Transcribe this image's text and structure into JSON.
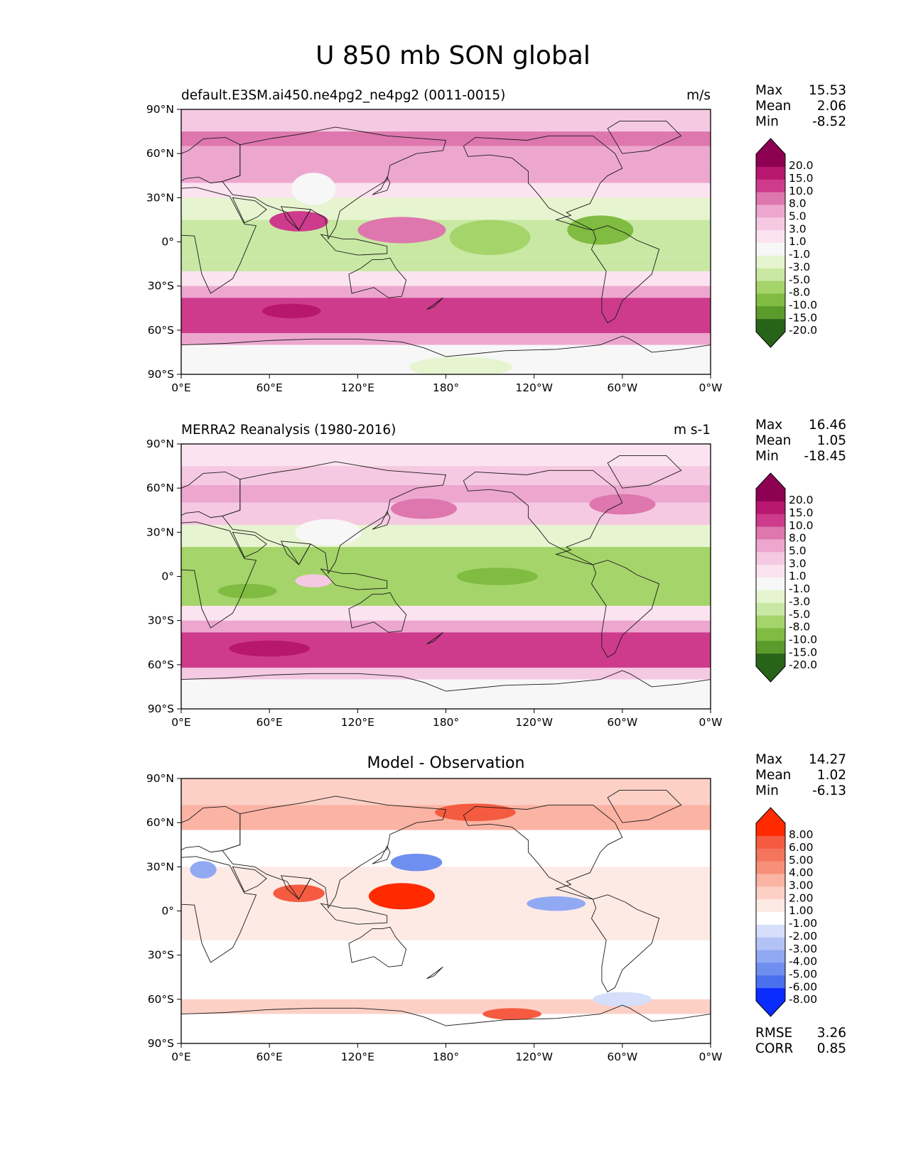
{
  "figure": {
    "title": "U 850 mb SON global"
  },
  "colors": {
    "div_colormap": [
      "#276419",
      "#4d9221",
      "#7fbc41",
      "#b8e186",
      "#e6f5d0",
      "#f7f7f7",
      "#fde0ef",
      "#f1b6da",
      "#de77ae",
      "#c51b7d",
      "#8e0152"
    ],
    "diff_colormap": [
      "#0b2cff",
      "#3c62f5",
      "#6f8ff0",
      "#a6b9f4",
      "#d5defa",
      "#ffffff",
      "#fddcd5",
      "#fbb3a4",
      "#f8846c",
      "#f4553a",
      "#ff2a00"
    ],
    "coastline": "#1a1a1a"
  },
  "chart_data": [
    {
      "type": "contourf_map",
      "name": "model",
      "left_title": "default.E3SM.ai450.ne4pg2_ne4pg2 (0011-0015)",
      "units": "m/s",
      "stats": [
        [
          "Max",
          "15.53"
        ],
        [
          "Mean",
          "2.06"
        ],
        [
          "Min",
          "-8.52"
        ]
      ],
      "colorbar_levels": [
        "20.0",
        "15.0",
        "10.0",
        "8.0",
        "5.0",
        "3.0",
        "1.0",
        "-1.0",
        "-3.0",
        "-5.0",
        "-8.0",
        "-10.0",
        "-15.0",
        "-20.0"
      ],
      "colorbar_colors": [
        "#8e0152",
        "#b7176f",
        "#ce3b8c",
        "#de77ae",
        "#eda7cf",
        "#f5c9e2",
        "#fbe3f0",
        "#f7f7f7",
        "#e6f5d0",
        "#c9e8a4",
        "#a5d46a",
        "#7fbc41",
        "#5a9b2c",
        "#276419"
      ],
      "xticks": [
        "0°E",
        "60°E",
        "120°E",
        "180°",
        "120°W",
        "60°W",
        "0°W"
      ],
      "yticks": [
        "90°N",
        "60°N",
        "30°N",
        "0°",
        "30°S",
        "60°S",
        "90°S"
      ],
      "zonal_bands": [
        {
          "lat": [
            90,
            75
          ],
          "value": 4
        },
        {
          "lat": [
            75,
            65
          ],
          "value": 8
        },
        {
          "lat": [
            65,
            55
          ],
          "value": 6
        },
        {
          "lat": [
            55,
            40
          ],
          "value": 7
        },
        {
          "lat": [
            40,
            30
          ],
          "value": 2
        },
        {
          "lat": [
            30,
            15
          ],
          "value": -3
        },
        {
          "lat": [
            15,
            -10
          ],
          "value": -5
        },
        {
          "lat": [
            -10,
            -20
          ],
          "value": -4
        },
        {
          "lat": [
            -20,
            -30
          ],
          "value": 1
        },
        {
          "lat": [
            -30,
            -38
          ],
          "value": 6
        },
        {
          "lat": [
            -38,
            -62
          ],
          "value": 12
        },
        {
          "lat": [
            -62,
            -70
          ],
          "value": 5
        },
        {
          "lat": [
            -70,
            -90
          ],
          "value": 0
        }
      ],
      "features": [
        {
          "lon": 150,
          "lat": 8,
          "w": 60,
          "h": 14,
          "value": 9
        },
        {
          "lon": 80,
          "lat": 14,
          "w": 40,
          "h": 10,
          "value": 10
        },
        {
          "lon": 210,
          "lat": 3,
          "w": 55,
          "h": 20,
          "value": -8
        },
        {
          "lon": 285,
          "lat": 8,
          "w": 45,
          "h": 16,
          "value": -9
        },
        {
          "lon": 90,
          "lat": 36,
          "w": 30,
          "h": 18,
          "value": 0
        },
        {
          "lon": 75,
          "lat": -47,
          "w": 40,
          "h": 6,
          "value": 15
        },
        {
          "lon": 190,
          "lat": -85,
          "w": 70,
          "h": 10,
          "value": -3
        }
      ]
    },
    {
      "type": "contourf_map",
      "name": "observation",
      "left_title": "MERRA2 Reanalysis (1980-2016)",
      "units": "m s-1",
      "stats": [
        [
          "Max",
          "16.46"
        ],
        [
          "Mean",
          "1.05"
        ],
        [
          "Min",
          "-18.45"
        ]
      ],
      "colorbar_levels": [
        "20.0",
        "15.0",
        "10.0",
        "8.0",
        "5.0",
        "3.0",
        "1.0",
        "-1.0",
        "-3.0",
        "-5.0",
        "-8.0",
        "-10.0",
        "-15.0",
        "-20.0"
      ],
      "colorbar_colors": [
        "#8e0152",
        "#b7176f",
        "#ce3b8c",
        "#de77ae",
        "#eda7cf",
        "#f5c9e2",
        "#fbe3f0",
        "#f7f7f7",
        "#e6f5d0",
        "#c9e8a4",
        "#a5d46a",
        "#7fbc41",
        "#5a9b2c",
        "#276419"
      ],
      "xticks": [
        "0°E",
        "60°E",
        "120°E",
        "180°",
        "120°W",
        "60°W",
        "0°W"
      ],
      "yticks": [
        "90°N",
        "60°N",
        "30°N",
        "0°",
        "30°S",
        "60°S",
        "90°S"
      ],
      "zonal_bands": [
        {
          "lat": [
            90,
            75
          ],
          "value": 1
        },
        {
          "lat": [
            75,
            62
          ],
          "value": 4
        },
        {
          "lat": [
            62,
            50
          ],
          "value": 5
        },
        {
          "lat": [
            50,
            35
          ],
          "value": 3
        },
        {
          "lat": [
            35,
            20
          ],
          "value": -3
        },
        {
          "lat": [
            20,
            -20
          ],
          "value": -6
        },
        {
          "lat": [
            -20,
            -30
          ],
          "value": 1
        },
        {
          "lat": [
            -30,
            -38
          ],
          "value": 5
        },
        {
          "lat": [
            -38,
            -62
          ],
          "value": 12
        },
        {
          "lat": [
            -62,
            -70
          ],
          "value": 4
        },
        {
          "lat": [
            -70,
            -90
          ],
          "value": 0
        }
      ],
      "features": [
        {
          "lon": 165,
          "lat": 46,
          "w": 45,
          "h": 10,
          "value": 9
        },
        {
          "lon": 300,
          "lat": 49,
          "w": 45,
          "h": 10,
          "value": 9
        },
        {
          "lon": 215,
          "lat": 0,
          "w": 55,
          "h": 8,
          "value": -10
        },
        {
          "lon": 45,
          "lat": -10,
          "w": 40,
          "h": 6,
          "value": -9
        },
        {
          "lon": 90,
          "lat": -3,
          "w": 25,
          "h": 5,
          "value": 4
        },
        {
          "lon": 60,
          "lat": -49,
          "w": 55,
          "h": 7,
          "value": 16
        },
        {
          "lon": 100,
          "lat": 30,
          "w": 45,
          "h": 14,
          "value": 0
        }
      ]
    },
    {
      "type": "contourf_map",
      "name": "difference",
      "center_title": "Model - Observation",
      "stats": [
        [
          "Max",
          "14.27"
        ],
        [
          "Mean",
          "1.02"
        ],
        [
          "Min",
          "-6.13"
        ]
      ],
      "footer_stats": [
        [
          "RMSE",
          "3.26"
        ],
        [
          "CORR",
          "0.85"
        ]
      ],
      "colorbar_levels": [
        "8.00",
        "6.00",
        "5.00",
        "4.00",
        "3.00",
        "2.00",
        "1.00",
        "-1.00",
        "-2.00",
        "-3.00",
        "-4.00",
        "-5.00",
        "-6.00",
        "-8.00"
      ],
      "colorbar_colors": [
        "#ff2a00",
        "#f55b40",
        "#f4755c",
        "#f79079",
        "#fbb3a4",
        "#fdd0c6",
        "#feeae5",
        "#ffffff",
        "#d5defa",
        "#b3c3f5",
        "#91a9f3",
        "#6f8ff0",
        "#4a70ee",
        "#0b2cff"
      ],
      "xticks": [
        "0°E",
        "60°E",
        "120°E",
        "180°",
        "120°W",
        "60°W",
        "0°W"
      ],
      "yticks": [
        "90°N",
        "60°N",
        "30°N",
        "0°",
        "30°S",
        "60°S",
        "90°S"
      ],
      "zonal_bands": [
        {
          "lat": [
            90,
            72
          ],
          "value": 2
        },
        {
          "lat": [
            72,
            55
          ],
          "value": 3
        },
        {
          "lat": [
            55,
            45
          ],
          "value": 0
        },
        {
          "lat": [
            45,
            30
          ],
          "value": 0
        },
        {
          "lat": [
            30,
            20
          ],
          "value": 1.5
        },
        {
          "lat": [
            20,
            0
          ],
          "value": 1
        },
        {
          "lat": [
            0,
            -20
          ],
          "value": 1.5
        },
        {
          "lat": [
            -20,
            -60
          ],
          "value": 0
        },
        {
          "lat": [
            -60,
            -70
          ],
          "value": 2.5
        },
        {
          "lat": [
            -70,
            -90
          ],
          "value": 0
        }
      ],
      "features": [
        {
          "lon": 200,
          "lat": 67,
          "w": 55,
          "h": 8,
          "value": 7
        },
        {
          "lon": 150,
          "lat": 10,
          "w": 45,
          "h": 14,
          "value": 9
        },
        {
          "lon": 80,
          "lat": 12,
          "w": 35,
          "h": 8,
          "value": 7
        },
        {
          "lon": 160,
          "lat": 33,
          "w": 35,
          "h": 8,
          "value": -5
        },
        {
          "lon": 255,
          "lat": 5,
          "w": 40,
          "h": 6,
          "value": -4
        },
        {
          "lon": 15,
          "lat": 28,
          "w": 18,
          "h": 8,
          "value": -4
        },
        {
          "lon": 225,
          "lat": -70,
          "w": 40,
          "h": 4,
          "value": 6
        },
        {
          "lon": 300,
          "lat": -60,
          "w": 40,
          "h": 6,
          "value": -2
        }
      ]
    }
  ]
}
